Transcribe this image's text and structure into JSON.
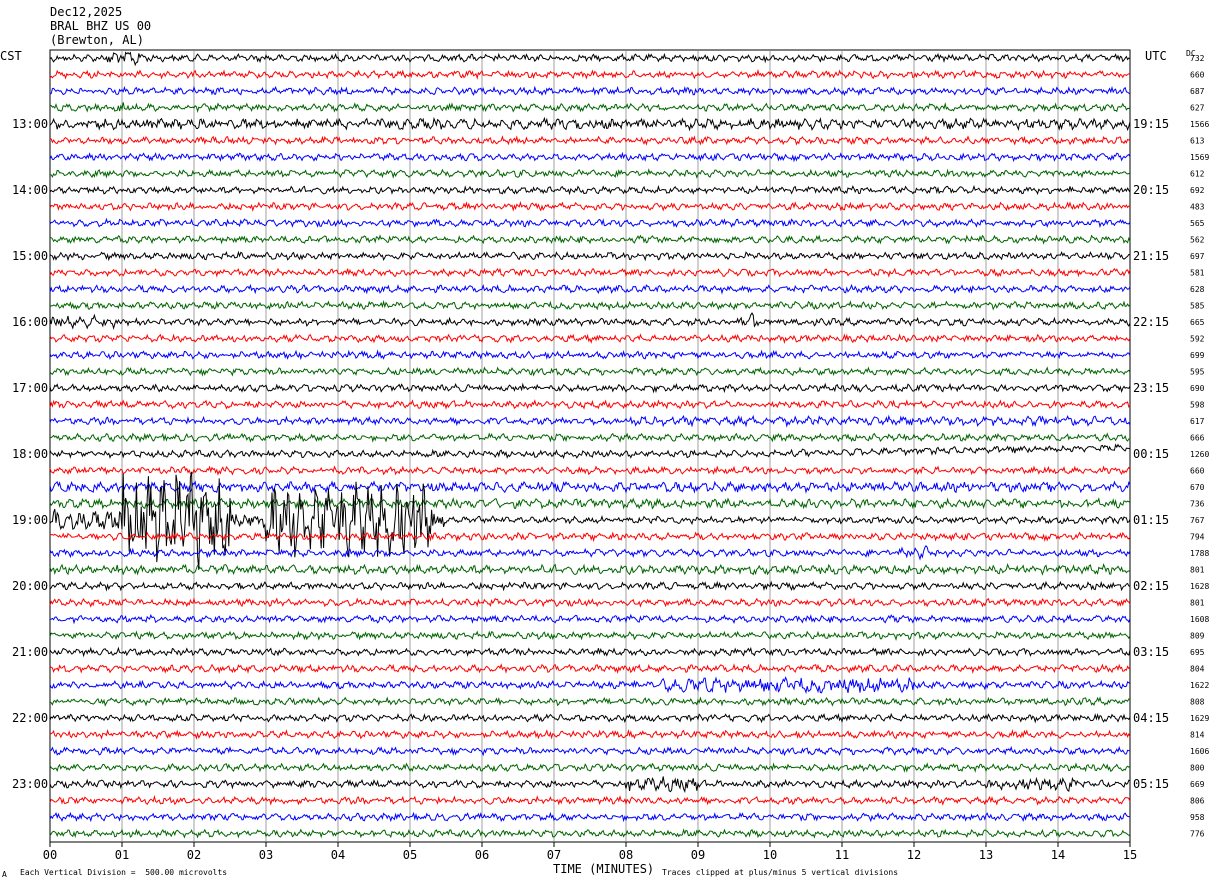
{
  "header": {
    "date": "Dec12,2025",
    "station": "BRAL BHZ US 00",
    "location": "(Brewton, AL)"
  },
  "labels": {
    "left_tz": "CST",
    "right_tz": "UTC",
    "dc": "DC",
    "xlabel": "TIME (MINUTES)",
    "scale_note": "Each Vertical Division =  500.00 microvolts",
    "clip_note": "Traces clipped at plus/minus 5 vertical divisions",
    "corner_mark": "A"
  },
  "chart_data": {
    "type": "line",
    "title": "",
    "xlabel": "TIME (MINUTES)",
    "xlim": [
      0,
      15
    ],
    "x_ticks": [
      "00",
      "01",
      "02",
      "03",
      "04",
      "05",
      "06",
      "07",
      "08",
      "09",
      "10",
      "11",
      "12",
      "13",
      "14",
      "15"
    ],
    "left_hour_labels": [
      "13:00",
      "14:00",
      "15:00",
      "16:00",
      "17:00",
      "18:00",
      "19:00",
      "20:00",
      "21:00",
      "22:00",
      "23:00"
    ],
    "right_hour_labels": [
      "19:15",
      "20:15",
      "21:15",
      "22:15",
      "23:15",
      "00:15",
      "01:15",
      "02:15",
      "03:15",
      "04:15",
      "05:15"
    ],
    "trace_colors": [
      "#000000",
      "#ff0000",
      "#0000ff",
      "#006400"
    ],
    "dc_offsets": [
      "732",
      "660",
      "687",
      "627",
      "1566",
      "613",
      "1569",
      "612",
      "692",
      "483",
      "565",
      "562",
      "697",
      "581",
      "628",
      "585",
      "665",
      "592",
      "699",
      "595",
      "690",
      "598",
      "617",
      "666",
      "1260",
      "660",
      "670",
      "736",
      "767",
      "794",
      "1788",
      "801",
      "1628",
      "801",
      "1608",
      "809",
      "695",
      "804",
      "1622",
      "808",
      "1629",
      "814",
      "1606",
      "800",
      "669",
      "806",
      "958",
      "776"
    ],
    "scale_microvolts_per_division": 500.0,
    "clip_divisions": 5
  }
}
